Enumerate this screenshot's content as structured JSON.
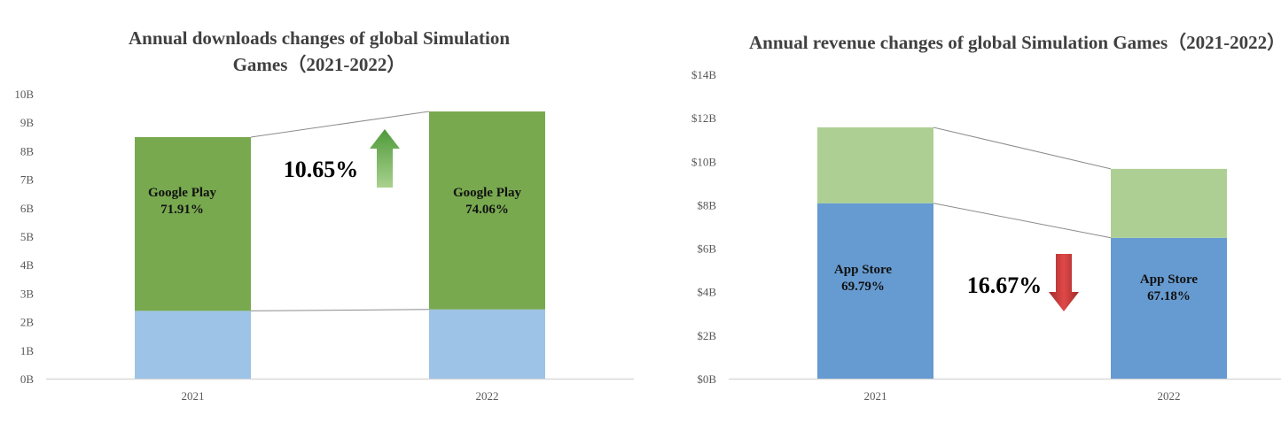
{
  "chart_data": [
    {
      "type": "bar",
      "stacked": true,
      "title": "Annual downloads changes of global Simulation Games（2021-2022）",
      "title_lines": [
        "Annual downloads changes of global Simulation",
        "Games（2021-2022）"
      ],
      "categories": [
        "2021",
        "2022"
      ],
      "ylim": [
        0,
        10
      ],
      "yticks": [
        "0B",
        "1B",
        "2B",
        "3B",
        "4B",
        "5B",
        "6B",
        "7B",
        "8B",
        "9B",
        "10B"
      ],
      "grid": false,
      "series": [
        {
          "name": "",
          "color": "#9dc3e6",
          "values": [
            2.38,
            2.43
          ]
        },
        {
          "name": "Google Play",
          "color": "#78a94f",
          "values": [
            6.1,
            6.95
          ],
          "labels": [
            [
              "Google Play",
              "71.91%"
            ],
            [
              "Google Play",
              "74.06%"
            ]
          ]
        }
      ],
      "change": {
        "text": "10.65%",
        "direction": "up",
        "color": "#70ad47"
      }
    },
    {
      "type": "bar",
      "stacked": true,
      "title": "Annual revenue changes of global Simulation Games（2021-2022）",
      "title_lines": [
        "Annual revenue changes of global Simulation Games",
        "（2021-2022）"
      ],
      "categories": [
        "2021",
        "2022"
      ],
      "ylim": [
        0,
        14
      ],
      "yticks": [
        "$0B",
        "$2B",
        "$4B",
        "$6B",
        "$8B",
        "$10B",
        "$12B",
        "$14B"
      ],
      "grid": false,
      "series": [
        {
          "name": "App Store",
          "color": "#669bd1",
          "values": [
            8.07,
            6.48
          ],
          "labels": [
            [
              "App Store",
              "69.79%"
            ],
            [
              "App Store",
              "67.18%"
            ]
          ]
        },
        {
          "name": "",
          "color": "#aecf93",
          "values": [
            3.49,
            3.17
          ]
        }
      ],
      "change": {
        "text": "16.67%",
        "direction": "down",
        "color": "#c0392b"
      }
    }
  ]
}
